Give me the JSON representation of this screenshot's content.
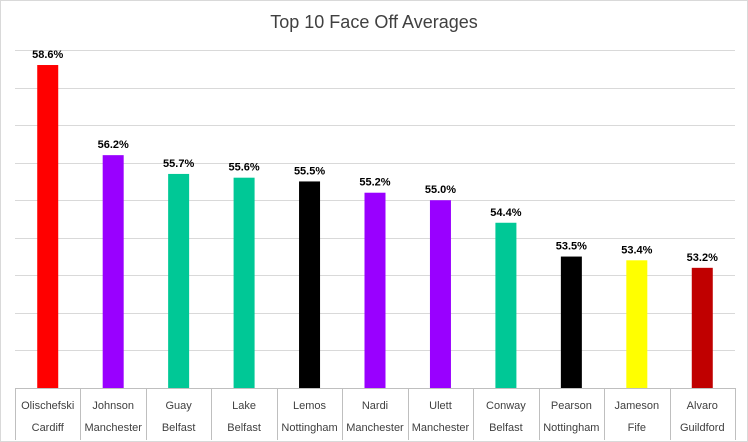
{
  "chart_data": {
    "type": "bar",
    "title": "Top 10 Face Off Averages",
    "xlabel": "",
    "ylabel": "",
    "ylim": [
      50.0,
      59.0
    ],
    "grid": true,
    "categories": [
      [
        "Olischefski",
        "Cardiff"
      ],
      [
        "Johnson",
        "Manchester"
      ],
      [
        "Guay",
        "Belfast"
      ],
      [
        "Lake",
        "Belfast"
      ],
      [
        "Lemos",
        "Nottingham"
      ],
      [
        "Nardi",
        "Manchester"
      ],
      [
        "Ulett",
        "Manchester"
      ],
      [
        "Conway",
        "Belfast"
      ],
      [
        "Pearson",
        "Nottingham"
      ],
      [
        "Jameson",
        "Fife"
      ],
      [
        "Alvaro",
        "Guildford"
      ]
    ],
    "values": [
      58.6,
      56.2,
      55.7,
      55.6,
      55.5,
      55.2,
      55.0,
      54.4,
      53.5,
      53.4,
      53.2
    ],
    "data_labels": [
      "58.6%",
      "56.2%",
      "55.7%",
      "55.6%",
      "55.5%",
      "55.2%",
      "55.0%",
      "54.4%",
      "53.5%",
      "53.4%",
      "53.2%"
    ],
    "colors": [
      "#ff0000",
      "#9900ff",
      "#00c896",
      "#00c896",
      "#000000",
      "#9900ff",
      "#9900ff",
      "#00c896",
      "#000000",
      "#ffff00",
      "#c00000"
    ]
  }
}
